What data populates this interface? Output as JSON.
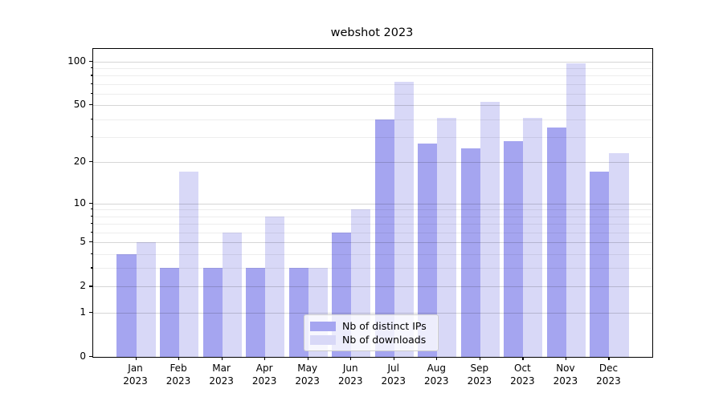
{
  "title": "webshot 2023",
  "chart_data": {
    "type": "bar",
    "scale": "log1p",
    "title": "webshot 2023",
    "categories": [
      "Jan",
      "Feb",
      "Mar",
      "Apr",
      "May",
      "Jun",
      "Jul",
      "Aug",
      "Sep",
      "Oct",
      "Nov",
      "Dec"
    ],
    "category_year": "2023",
    "series": [
      {
        "name": "Nb of distinct IPs",
        "color": "#a5a5f0",
        "values": [
          4,
          3,
          3,
          3,
          3,
          6,
          40,
          27,
          25,
          28,
          35,
          17
        ]
      },
      {
        "name": "Nb of downloads",
        "color": "#d8d8f7",
        "values": [
          5,
          17,
          6,
          8,
          3,
          9,
          73,
          41,
          53,
          41,
          97,
          23
        ]
      }
    ],
    "yticks": [
      0,
      1,
      2,
      5,
      10,
      20,
      50,
      100
    ],
    "minor_yticks": [
      3,
      4,
      6,
      7,
      8,
      9,
      30,
      40,
      60,
      70,
      80,
      90
    ],
    "ylim": [
      0,
      122
    ],
    "xlabel": "",
    "ylabel": "",
    "grid": true,
    "legend_position": "lower center"
  },
  "colors": {
    "bar_ips": "#a5a5f0",
    "bar_downloads": "#d8d8f7",
    "grid_major": "rgba(0,0,0,0.16)",
    "grid_minor": "rgba(0,0,0,0.07)",
    "spine": "#000000",
    "legend_border": "#cccccc"
  }
}
